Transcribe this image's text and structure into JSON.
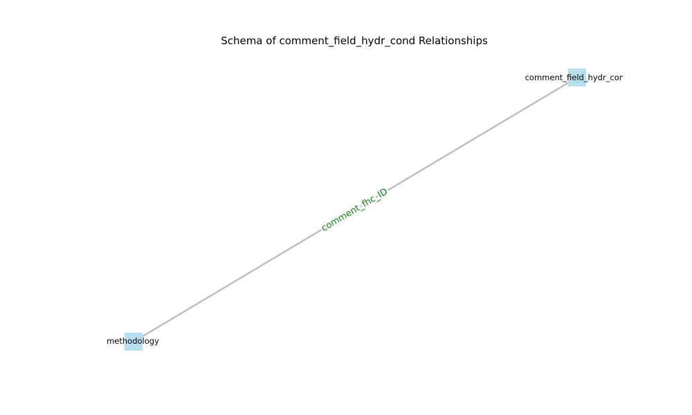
{
  "title": "Schema of comment_field_hydr_cond Relationships",
  "nodes": [
    {
      "id": "comment_field_hydr_cond",
      "label": "comment_field_hydr_cond",
      "visible_label": "comment_field_hydr_cor"
    },
    {
      "id": "methodology",
      "label": "methodology"
    }
  ],
  "edges": [
    {
      "source": "methodology",
      "target": "comment_field_hydr_cond",
      "label": "comment_fhc_ID"
    }
  ],
  "colors": {
    "node_fill": "#b7dff0",
    "edge_stroke": "#bfbfbf",
    "edge_label": "#128012",
    "background": "#ffffff",
    "text": "#000000"
  }
}
